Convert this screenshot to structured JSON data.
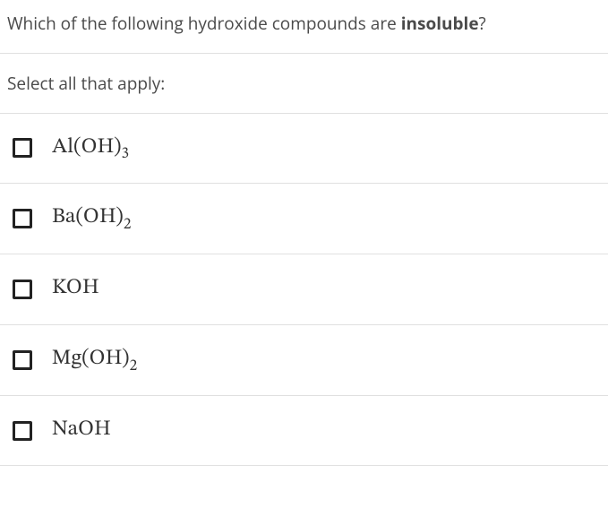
{
  "question": {
    "prefix": "Which of the following hydroxide compounds are ",
    "emphasis": "insoluble",
    "suffix": "?"
  },
  "instruction": "Select all that apply:",
  "options": [
    {
      "base": "Al(OH)",
      "sub": "3"
    },
    {
      "base": "Ba(OH)",
      "sub": "2"
    },
    {
      "base": "KOH",
      "sub": ""
    },
    {
      "base": "Mg(OH)",
      "sub": "2"
    },
    {
      "base": "NaOH",
      "sub": ""
    }
  ],
  "colors": {
    "text": "#4a4a4a",
    "formula": "#333333",
    "divider": "#e0e0e0",
    "checkbox_border": "#222222",
    "background": "#ffffff"
  },
  "typography": {
    "question_fontsize": 19,
    "formula_fontsize": 24,
    "sub_scale": 0.72
  }
}
